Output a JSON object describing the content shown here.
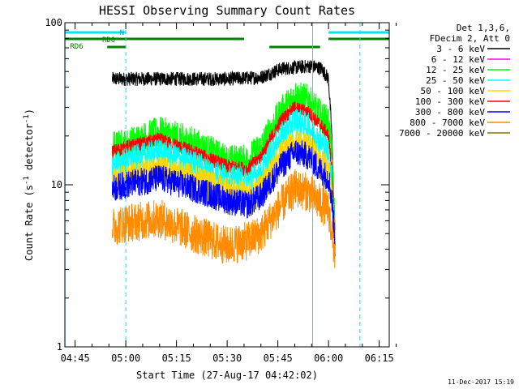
{
  "chart_data": {
    "type": "line",
    "title": "HESSI Observing Summary Count Rates",
    "xlabel": "Start Time (27-Aug-17 04:42:02)",
    "ylabel_main": "Count Rate (s",
    "ylabel_sup1": "-1",
    "ylabel_mid": " detector",
    "ylabel_sup2": "-1",
    "ylabel_end": ")",
    "y_scale": "log",
    "ylim": [
      1,
      100
    ],
    "y_ticks": [
      {
        "value": 1,
        "label": "1"
      },
      {
        "value": 10,
        "label": "10"
      },
      {
        "value": 100,
        "label": "100"
      }
    ],
    "x_range_minutes": [
      -18.03,
      77.97
    ],
    "x_ticks": [
      {
        "minute": 45,
        "label": "04:45"
      },
      {
        "minute": 60,
        "label": "05:00"
      },
      {
        "minute": 75,
        "label": "05:15"
      },
      {
        "minute": 90,
        "label": "05:30"
      },
      {
        "minute": 105,
        "label": "05:45"
      },
      {
        "minute": 120,
        "label": "06:00"
      },
      {
        "minute": 135,
        "label": "06:15"
      }
    ],
    "legend": {
      "placement": "right",
      "header": [
        "Det 1,3,6,",
        "FDecim 2, Att 0"
      ],
      "entries": [
        {
          "label": "3 - 6 keV",
          "color": "#000000"
        },
        {
          "label": "6 - 12 keV",
          "color": "#ff00ff"
        },
        {
          "label": "12 - 25 keV",
          "color": "#00ff00"
        },
        {
          "label": "25 - 50 keV",
          "color": "#00ffff"
        },
        {
          "label": "50 - 100 keV",
          "color": "#ffd700"
        },
        {
          "label": "100 - 300 keV",
          "color": "#ff0000"
        },
        {
          "label": "300 - 800 keV",
          "color": "#0000ff"
        },
        {
          "label": "800 - 7000 keV",
          "color": "#ff8c00"
        },
        {
          "label": "7000 - 20000 keV",
          "color": "#8b7500"
        }
      ]
    },
    "series": [
      {
        "name": "3 - 6 keV",
        "color": "#000000",
        "noise": 0.05,
        "points": [
          [
            -4,
            45
          ],
          [
            10,
            45
          ],
          [
            20,
            45
          ],
          [
            30,
            45
          ],
          [
            40,
            46
          ],
          [
            46,
            52
          ],
          [
            55,
            54
          ],
          [
            58,
            52
          ],
          [
            60,
            45
          ],
          [
            61,
            20
          ],
          [
            62,
            3
          ]
        ]
      },
      {
        "name": "12 - 25 keV",
        "color": "#00ff00",
        "noise": 0.12,
        "points": [
          [
            -4,
            17
          ],
          [
            0,
            17.5
          ],
          [
            10,
            21
          ],
          [
            20,
            18
          ],
          [
            30,
            14
          ],
          [
            36,
            14
          ],
          [
            40,
            17
          ],
          [
            46,
            28
          ],
          [
            50,
            35
          ],
          [
            54,
            33
          ],
          [
            58,
            26
          ],
          [
            60,
            24
          ],
          [
            61,
            15
          ],
          [
            62,
            5
          ]
        ]
      },
      {
        "name": "100 - 300 keV",
        "color": "#ff0000",
        "noise": 0.05,
        "points": [
          [
            -4,
            16
          ],
          [
            0,
            17
          ],
          [
            10,
            19
          ],
          [
            20,
            16
          ],
          [
            30,
            13
          ],
          [
            36,
            12.5
          ],
          [
            40,
            15
          ],
          [
            46,
            25
          ],
          [
            50,
            30
          ],
          [
            54,
            28
          ],
          [
            58,
            23
          ],
          [
            60,
            20
          ],
          [
            61,
            12
          ],
          [
            62,
            4.5
          ]
        ]
      },
      {
        "name": "25 - 50 keV",
        "color": "#00ffff",
        "noise": 0.1,
        "points": [
          [
            -4,
            13
          ],
          [
            0,
            14
          ],
          [
            10,
            16
          ],
          [
            20,
            13.5
          ],
          [
            30,
            11
          ],
          [
            36,
            10.5
          ],
          [
            40,
            12
          ],
          [
            46,
            20
          ],
          [
            50,
            25
          ],
          [
            54,
            23
          ],
          [
            58,
            18
          ],
          [
            60,
            16
          ],
          [
            61,
            10
          ],
          [
            62,
            4.5
          ]
        ]
      },
      {
        "name": "50 - 100 keV",
        "color": "#ffd700",
        "noise": 0.08,
        "points": [
          [
            -4,
            11
          ],
          [
            0,
            11.5
          ],
          [
            10,
            13
          ],
          [
            20,
            11.5
          ],
          [
            30,
            9.5
          ],
          [
            36,
            9
          ],
          [
            40,
            10
          ],
          [
            46,
            16
          ],
          [
            50,
            19
          ],
          [
            54,
            18
          ],
          [
            58,
            14
          ],
          [
            60,
            13
          ],
          [
            61,
            9
          ],
          [
            62,
            4.5
          ]
        ]
      },
      {
        "name": "300 - 800 keV",
        "color": "#0000ff",
        "noise": 0.1,
        "points": [
          [
            -4,
            9.5
          ],
          [
            0,
            10
          ],
          [
            10,
            11
          ],
          [
            20,
            9.5
          ],
          [
            30,
            8
          ],
          [
            36,
            7.5
          ],
          [
            40,
            8.5
          ],
          [
            46,
            13
          ],
          [
            50,
            16
          ],
          [
            54,
            15
          ],
          [
            58,
            12
          ],
          [
            60,
            11
          ],
          [
            61,
            8
          ],
          [
            62,
            4.5
          ]
        ]
      },
      {
        "name": "800 - 7000 keV",
        "color": "#ff8c00",
        "noise": 0.14,
        "points": [
          [
            -4,
            5.5
          ],
          [
            0,
            5.8
          ],
          [
            10,
            6.2
          ],
          [
            20,
            5
          ],
          [
            30,
            4.2
          ],
          [
            36,
            4.5
          ],
          [
            40,
            5
          ],
          [
            46,
            7.5
          ],
          [
            50,
            9.5
          ],
          [
            54,
            9
          ],
          [
            58,
            7.5
          ],
          [
            60,
            7
          ],
          [
            61,
            5
          ],
          [
            62,
            3.5
          ]
        ]
      }
    ],
    "annotation_bars": [
      {
        "label": "N",
        "color": "#00e5ee",
        "segments": [
          [
            -18,
            0
          ],
          [
            60,
            78
          ]
        ]
      },
      {
        "label": "RD0",
        "color": "#008000",
        "segments": [
          [
            -18,
            35
          ],
          [
            60,
            78
          ]
        ]
      },
      {
        "label": "RD6",
        "color": "#008000",
        "segments": [
          [
            -5.5,
            0
          ],
          [
            42.5,
            57.5
          ]
        ]
      }
    ],
    "vertical_markers": [
      {
        "minute": -18,
        "color": "#00e5ee",
        "style": "solid"
      },
      {
        "minute": 0,
        "color": "#00e5ee",
        "style": "dashed"
      },
      {
        "minute": 55.3,
        "color": "#00e5ee",
        "style": "solid"
      },
      {
        "minute": 69.3,
        "color": "#00e5ee",
        "style": "dashed"
      }
    ]
  },
  "footer": {
    "date_stamp": "11-Dec-2017 15:19"
  }
}
